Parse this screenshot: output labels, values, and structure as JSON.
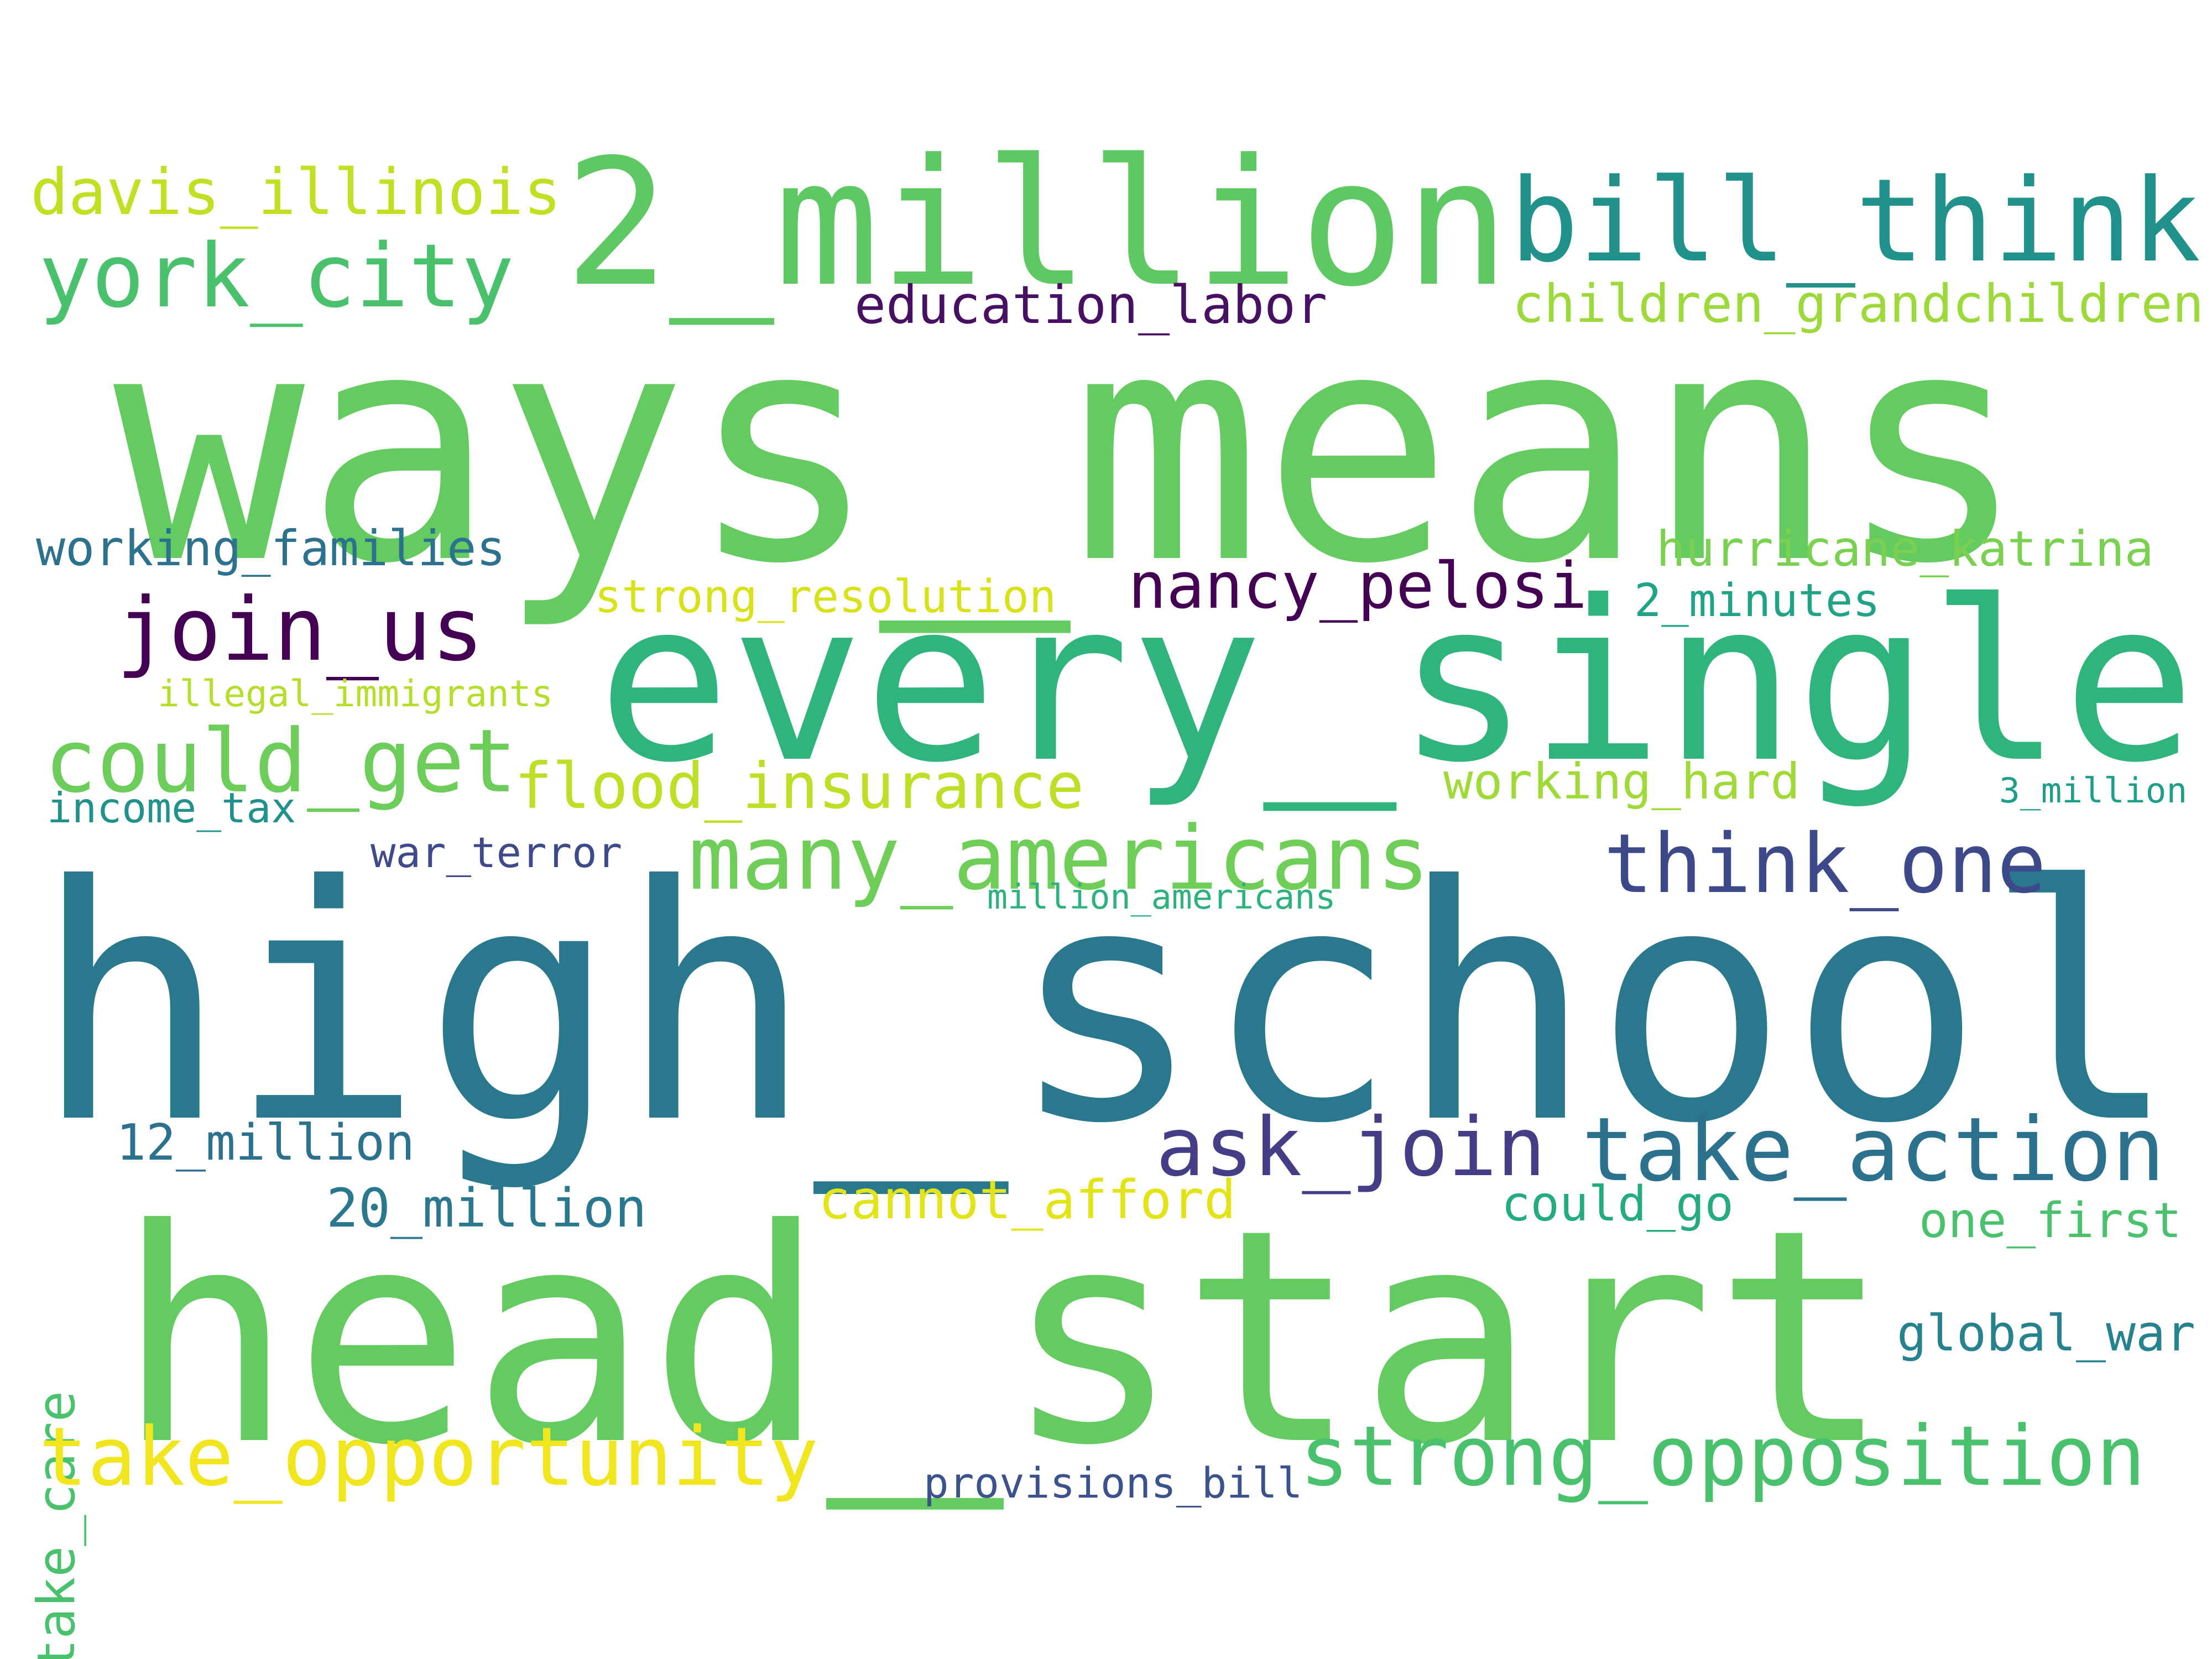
{
  "words": [
    {
      "text": "ways_means",
      "color": "#63cb5f"
    },
    {
      "text": "high_school",
      "color": "#2a788e"
    },
    {
      "text": "head_start",
      "color": "#63cb5f"
    },
    {
      "text": "every_single",
      "color": "#2fb47c"
    },
    {
      "text": "2_million",
      "color": "#5ec962"
    },
    {
      "text": "bill_think",
      "color": "#21918c"
    },
    {
      "text": "york_city",
      "color": "#4ac16d"
    },
    {
      "text": "davis_illinois",
      "color": "#c2df23"
    },
    {
      "text": "education_labor",
      "color": "#471063"
    },
    {
      "text": "children_grandchildren",
      "color": "#9dd93b"
    },
    {
      "text": "working_families",
      "color": "#2c728e"
    },
    {
      "text": "hurricane_katrina",
      "color": "#7ad151"
    },
    {
      "text": "join_us",
      "color": "#440154"
    },
    {
      "text": "strong_resolution",
      "color": "#d8e219"
    },
    {
      "text": "nancy_pelosi",
      "color": "#440154"
    },
    {
      "text": "2_minutes",
      "color": "#20a386"
    },
    {
      "text": "illegal_immigrants",
      "color": "#b5de2b"
    },
    {
      "text": "could_get",
      "color": "#6ccd5a"
    },
    {
      "text": "flood_insurance",
      "color": "#bddf26"
    },
    {
      "text": "working_hard",
      "color": "#a0da39"
    },
    {
      "text": "3_million",
      "color": "#1f9e89"
    },
    {
      "text": "income_tax",
      "color": "#21918c"
    },
    {
      "text": "many_americans",
      "color": "#6ece58"
    },
    {
      "text": "think_one",
      "color": "#3e4989"
    },
    {
      "text": "war_terror",
      "color": "#3e4a89"
    },
    {
      "text": "million_americans",
      "color": "#2db27d"
    },
    {
      "text": "ask_join",
      "color": "#433e85"
    },
    {
      "text": "take_action",
      "color": "#2c728e"
    },
    {
      "text": "12_million",
      "color": "#2c728e"
    },
    {
      "text": "take_care",
      "color": "#4ac16d"
    },
    {
      "text": "20_million",
      "color": "#2a788e"
    },
    {
      "text": "cannot_afford",
      "color": "#e2e418"
    },
    {
      "text": "could_go",
      "color": "#25ab82"
    },
    {
      "text": "one_first",
      "color": "#4ac16d"
    },
    {
      "text": "global_war",
      "color": "#26828e"
    },
    {
      "text": "take_opportunity",
      "color": "#f1e51d"
    },
    {
      "text": "strong_opposition",
      "color": "#4ac16d"
    },
    {
      "text": "provisions_bill",
      "color": "#3b528b"
    }
  ]
}
